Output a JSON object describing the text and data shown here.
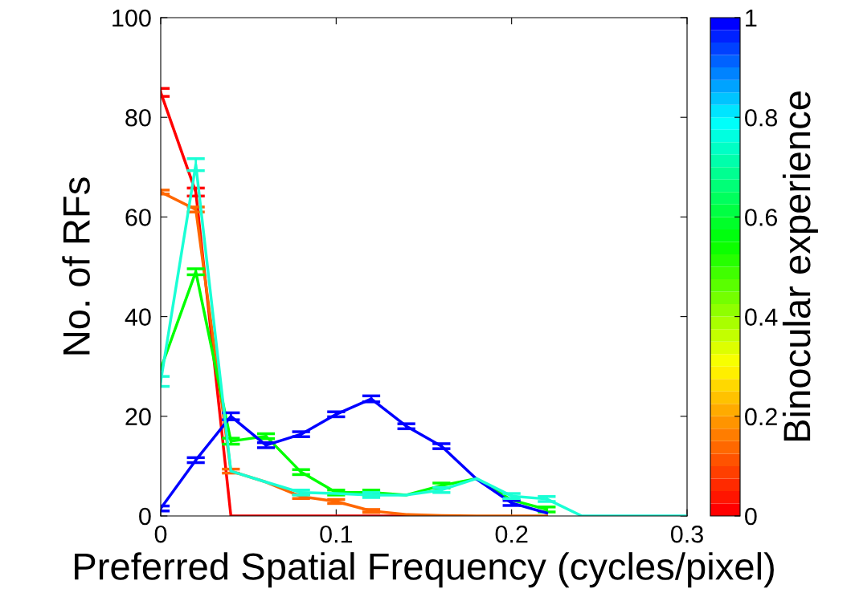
{
  "chart_data": {
    "type": "line",
    "xlabel": "Preferred Spatial Frequency (cycles/pixel)",
    "ylabel": "No. of RFs",
    "clabel": "Binocular experience",
    "x": [
      0,
      0.02,
      0.04,
      0.06,
      0.08,
      0.1,
      0.12,
      0.14,
      0.16,
      0.18,
      0.2,
      0.22,
      0.24,
      0.26,
      0.28,
      0.3
    ],
    "series": [
      {
        "color": "#ff0000",
        "values": [
          85,
          65,
          0,
          0,
          0,
          0,
          0,
          0,
          0,
          null,
          null,
          null,
          null,
          null,
          null,
          null
        ],
        "errors": [
          0.8,
          0.8,
          null,
          null,
          null,
          null,
          null,
          null,
          null,
          null,
          null,
          null,
          null,
          null,
          null,
          null
        ]
      },
      {
        "color": "#ff6600",
        "values": [
          65,
          61.5,
          9,
          6.8,
          3.9,
          2.9,
          1,
          0.3,
          0.1,
          0,
          0,
          0,
          null,
          null,
          null,
          null
        ],
        "errors": [
          0.4,
          0.5,
          0.4,
          null,
          0.4,
          0.4,
          0.3,
          null,
          null,
          null,
          null,
          null,
          null,
          null,
          null,
          null
        ]
      },
      {
        "color": "#00ff00",
        "values": [
          29.5,
          49,
          15,
          16,
          8.8,
          4.7,
          4.7,
          4.2,
          6.1,
          7.5,
          3.2,
          1.3,
          null,
          null,
          null,
          null
        ],
        "errors": [
          null,
          0.6,
          0.6,
          0.5,
          0.5,
          0.5,
          0.5,
          null,
          0.5,
          null,
          null,
          0.5,
          null,
          null,
          null,
          null
        ]
      },
      {
        "color": "#0000ff",
        "values": [
          1.5,
          11.2,
          20,
          14.2,
          16.4,
          20.4,
          23.5,
          18,
          14,
          7.4,
          2.6,
          0.6,
          null,
          null,
          null,
          null
        ],
        "errors": [
          0.5,
          0.5,
          0.7,
          0.5,
          0.5,
          0.5,
          0.6,
          0.5,
          0.5,
          null,
          0.5,
          null,
          null,
          null,
          null,
          null
        ]
      },
      {
        "color": "#1affd5",
        "values": [
          27,
          70.5,
          9,
          6.8,
          4.7,
          4.5,
          4.2,
          4.2,
          5.2,
          7.5,
          4,
          3.4,
          0,
          0,
          0,
          0
        ],
        "errors": [
          1,
          1.2,
          null,
          null,
          0.5,
          null,
          0.5,
          null,
          0.5,
          null,
          0.5,
          0.5,
          null,
          null,
          null,
          null
        ]
      }
    ],
    "xlim": [
      0,
      0.3
    ],
    "xticks": [
      0,
      0.1,
      0.2,
      0.3
    ],
    "ylim": [
      0,
      100
    ],
    "yticks": [
      0,
      20,
      40,
      60,
      80,
      100
    ],
    "clim": [
      0,
      1
    ],
    "cticks": [
      0,
      0.2,
      0.4,
      0.6,
      0.8,
      1
    ],
    "grid": false,
    "legend": false,
    "marker": "none",
    "line_style": "solid"
  }
}
